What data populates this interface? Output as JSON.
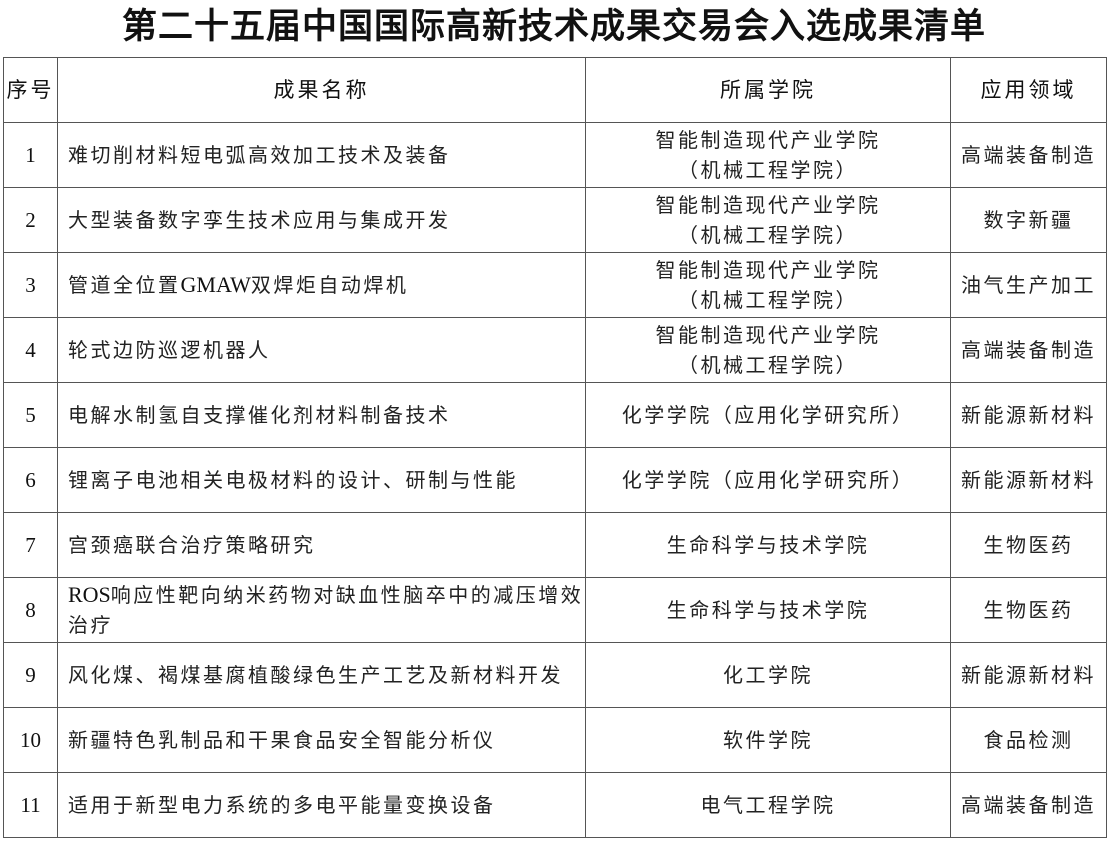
{
  "title": "第二十五届中国国际高新技术成果交易会入选成果清单",
  "headers": [
    "序号",
    "成果名称",
    "所属学院",
    "应用领域"
  ],
  "rows": [
    {
      "no": "1",
      "name": "难切削材料短电弧高效加工技术及装备",
      "college": "智能制造现代产业学院（机械工程学院）",
      "field": "高端装备制造"
    },
    {
      "no": "2",
      "name": "大型装备数字孪生技术应用与集成开发",
      "college": "智能制造现代产业学院（机械工程学院）",
      "field": "数字新疆"
    },
    {
      "no": "3",
      "name": "管道全位置GMAW双焊炬自动焊机",
      "college": "智能制造现代产业学院（机械工程学院）",
      "field": "油气生产加工"
    },
    {
      "no": "4",
      "name": "轮式边防巡逻机器人",
      "college": "智能制造现代产业学院（机械工程学院）",
      "field": "高端装备制造"
    },
    {
      "no": "5",
      "name": "电解水制氢自支撑催化剂材料制备技术",
      "college": "化学学院（应用化学研究所）",
      "field": "新能源新材料"
    },
    {
      "no": "6",
      "name": "锂离子电池相关电极材料的设计、研制与性能",
      "college": "化学学院（应用化学研究所）",
      "field": "新能源新材料"
    },
    {
      "no": "7",
      "name": "宫颈癌联合治疗策略研究",
      "college": "生命科学与技术学院",
      "field": "生物医药"
    },
    {
      "no": "8",
      "name": "ROS响应性靶向纳米药物对缺血性脑卒中的减压增效治疗",
      "college": "生命科学与技术学院",
      "field": "生物医药"
    },
    {
      "no": "9",
      "name": "风化煤、褐煤基腐植酸绿色生产工艺及新材料开发",
      "college": "化工学院",
      "field": "新能源新材料"
    },
    {
      "no": "10",
      "name": "新疆特色乳制品和干果食品安全智能分析仪",
      "college": "软件学院",
      "field": "食品检测"
    },
    {
      "no": "11",
      "name": "适用于新型电力系统的多电平能量变换设备",
      "college": "电气工程学院",
      "field": "高端装备制造"
    }
  ]
}
